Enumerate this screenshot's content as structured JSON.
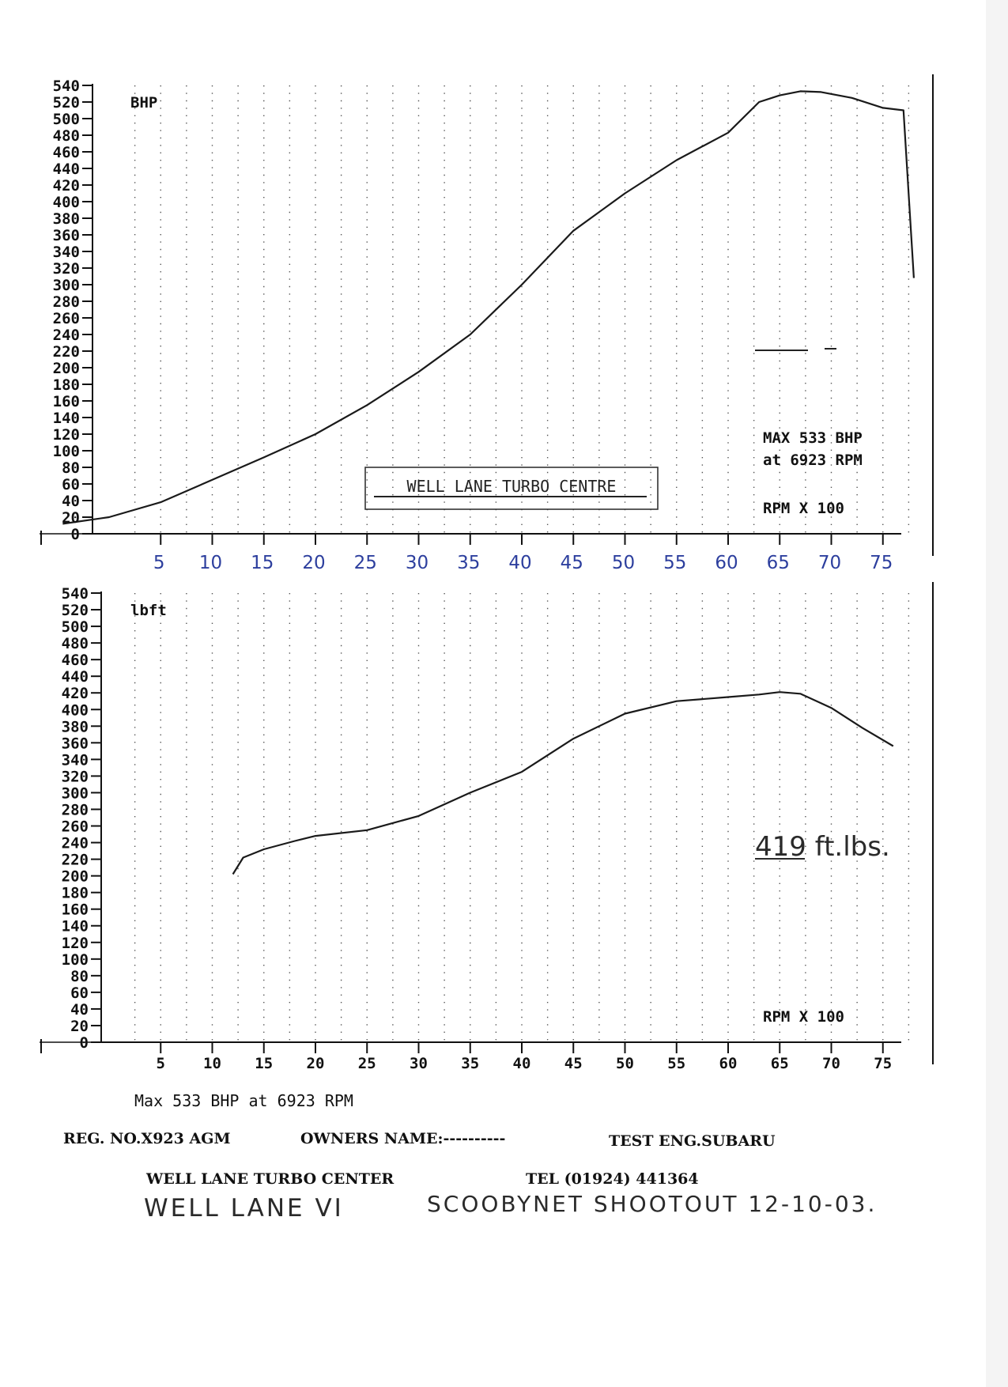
{
  "chart_data": [
    {
      "type": "line",
      "title": "",
      "ylabel": "BHP",
      "xlabel": "RPM X 100",
      "xlim": [
        0,
        78
      ],
      "ylim": [
        0,
        540
      ],
      "y_ticks": [
        "540",
        "520",
        "500",
        "480",
        "460",
        "440",
        "420",
        "400",
        "380",
        "360",
        "340",
        "320",
        "300",
        "280",
        "260",
        "240",
        "220",
        "200",
        "180",
        "160",
        "140",
        "120",
        "100",
        "80",
        "60",
        "40",
        "20",
        "0"
      ],
      "x_tick_labels": [
        "5",
        "10",
        "15",
        "20",
        "25",
        "30",
        "35",
        "40",
        "45",
        "50",
        "55",
        "60",
        "65",
        "70",
        "75"
      ],
      "grid": true,
      "series": [
        {
          "values": [
            [
              -4.5,
              12
            ],
            [
              0,
              20
            ],
            [
              5,
              38
            ],
            [
              10,
              65
            ],
            [
              15,
              92
            ],
            [
              20,
              120
            ],
            [
              25,
              155
            ],
            [
              30,
              195
            ],
            [
              35,
              240
            ],
            [
              40,
              300
            ],
            [
              45,
              365
            ],
            [
              50,
              410
            ],
            [
              55,
              450
            ],
            [
              60,
              483
            ],
            [
              63,
              520
            ],
            [
              65,
              528
            ],
            [
              67,
              533
            ],
            [
              69,
              532
            ],
            [
              72,
              525
            ],
            [
              75,
              513
            ],
            [
              77,
              510
            ],
            [
              78,
              308
            ]
          ]
        }
      ],
      "annotations": {
        "max_line1": "MAX 533 BHP",
        "max_line2": "at 6923 RPM",
        "box_text": "WELL LANE TURBO CENTRE",
        "max_rpm": "6923",
        "max_bhp": "533"
      }
    },
    {
      "type": "line",
      "title": "",
      "ylabel": "lbft",
      "xlabel": "RPM X 100",
      "xlim": [
        0,
        78
      ],
      "ylim": [
        0,
        540
      ],
      "y_ticks": [
        "540",
        "520",
        "500",
        "480",
        "460",
        "440",
        "420",
        "400",
        "380",
        "360",
        "340",
        "320",
        "300",
        "280",
        "260",
        "240",
        "220",
        "200",
        "180",
        "160",
        "140",
        "120",
        "100",
        "80",
        "60",
        "40",
        "20",
        "0"
      ],
      "x_tick_labels": [
        "5",
        "10",
        "15",
        "20",
        "25",
        "30",
        "35",
        "40",
        "45",
        "50",
        "55",
        "60",
        "65",
        "70",
        "75"
      ],
      "grid": true,
      "series": [
        {
          "values": [
            [
              12,
              202
            ],
            [
              13,
              222
            ],
            [
              15,
              232
            ],
            [
              18,
              242
            ],
            [
              20,
              248
            ],
            [
              25,
              255
            ],
            [
              30,
              272
            ],
            [
              35,
              300
            ],
            [
              40,
              325
            ],
            [
              45,
              365
            ],
            [
              50,
              395
            ],
            [
              55,
              410
            ],
            [
              60,
              415
            ],
            [
              63,
              418
            ],
            [
              65,
              421
            ],
            [
              67,
              419
            ],
            [
              70,
              402
            ],
            [
              73,
              378
            ],
            [
              76,
              356
            ]
          ]
        }
      ],
      "annotations": {
        "handwritten": "419 ft.lbs."
      }
    }
  ],
  "footer": {
    "max_line": "Max 533 BHP at 6923 RPM",
    "reg_no": "REG. NO.X923 AGM",
    "owners_name": "OWNERS NAME:----------",
    "test_eng": "TEST ENG.SUBARU",
    "company": "WELL LANE TURBO CENTER",
    "tel": "TEL (01924) 441364",
    "handwritten_left": "WELL LANE VI",
    "handwritten_right": "SCOOBYNET SHOOTOUT 12-10-03."
  }
}
